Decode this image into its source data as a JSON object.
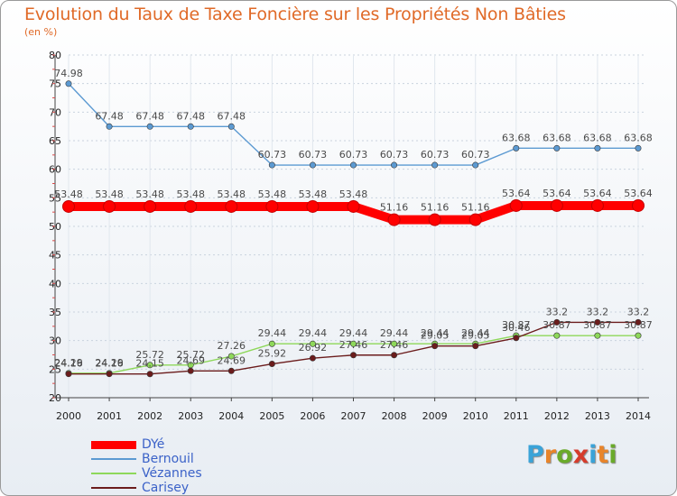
{
  "title": "Evolution du Taux de Taxe Foncière sur les Propriétés Non Bâties",
  "unit": "(en %)",
  "logo": {
    "text": "Proxiti",
    "letters": [
      "P",
      "r",
      "o",
      "x",
      "i",
      "t",
      "i"
    ],
    "colors": [
      "#3aa3d8",
      "#e8842a",
      "#6aaa2a",
      "#d63c2c",
      "#3aa3d8",
      "#e8842a",
      "#6aaa2a"
    ]
  },
  "chart_data": {
    "type": "line",
    "title": "Evolution du Taux de Taxe Foncière sur les Propriétés Non Bâties",
    "ylabel": "(en %)",
    "xlabel": "",
    "x": [
      "2000",
      "2001",
      "2002",
      "2003",
      "2004",
      "2005",
      "2006",
      "2007",
      "2008",
      "2009",
      "2010",
      "2011",
      "2012",
      "2013",
      "2014"
    ],
    "ylim": [
      20,
      80
    ],
    "yticks": [
      20,
      25,
      30,
      35,
      40,
      45,
      50,
      55,
      60,
      65,
      70,
      75,
      80
    ],
    "grid": "horizontal dashed",
    "legend": "bottom-left",
    "series": [
      {
        "name": "DYé",
        "color": "#ff0000",
        "values": [
          53.48,
          53.48,
          53.48,
          53.48,
          53.48,
          53.48,
          53.48,
          53.48,
          51.16,
          51.16,
          51.16,
          53.64,
          53.64,
          53.64,
          53.64
        ]
      },
      {
        "name": "Bernouil",
        "color": "#5c9ad2",
        "values": [
          74.98,
          67.48,
          67.48,
          67.48,
          67.48,
          60.73,
          60.73,
          60.73,
          60.73,
          60.73,
          60.73,
          63.68,
          63.68,
          63.68,
          63.68
        ]
      },
      {
        "name": "Vézannes",
        "color": "#8ed85a",
        "values": [
          24.29,
          24.29,
          25.72,
          25.72,
          27.26,
          29.44,
          29.44,
          29.44,
          29.44,
          29.44,
          29.44,
          30.87,
          30.87,
          30.87,
          30.87
        ]
      },
      {
        "name": "Carisey",
        "color": "#6b1c1c",
        "values": [
          24.16,
          24.16,
          24.15,
          24.69,
          24.69,
          25.92,
          26.92,
          27.46,
          27.46,
          29.05,
          29.05,
          30.46,
          33.2,
          33.2,
          33.2
        ]
      }
    ]
  }
}
